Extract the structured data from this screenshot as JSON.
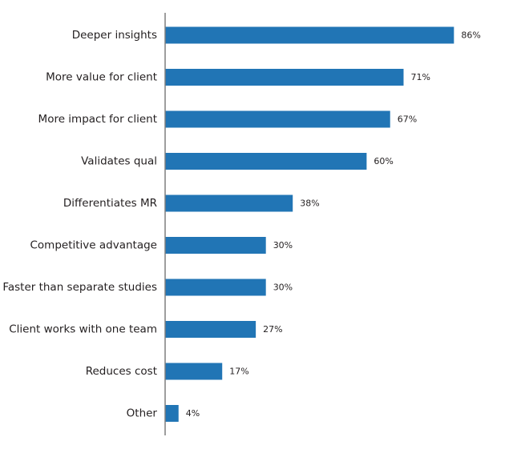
{
  "chart_data": {
    "type": "bar",
    "orientation": "horizontal",
    "title": "",
    "xlabel": "",
    "ylabel": "",
    "xlim": [
      0,
      100
    ],
    "grid": false,
    "legend": "none",
    "value_suffix": "%",
    "bar_color": "#2175b5",
    "axis_color": "#7f7f7f",
    "categories": [
      "Deeper insights",
      "More value for client",
      "More impact for client",
      "Validates qual",
      "Differentiates MR",
      "Competitive advantage",
      "Faster than separate studies",
      "Client works with one team",
      "Reduces cost",
      "Other"
    ],
    "values": [
      86,
      71,
      67,
      60,
      38,
      30,
      30,
      27,
      17,
      4
    ],
    "value_labels": [
      "86%",
      "71%",
      "67%",
      "60%",
      "38%",
      "30%",
      "30%",
      "27%",
      "17%",
      "4%"
    ]
  }
}
